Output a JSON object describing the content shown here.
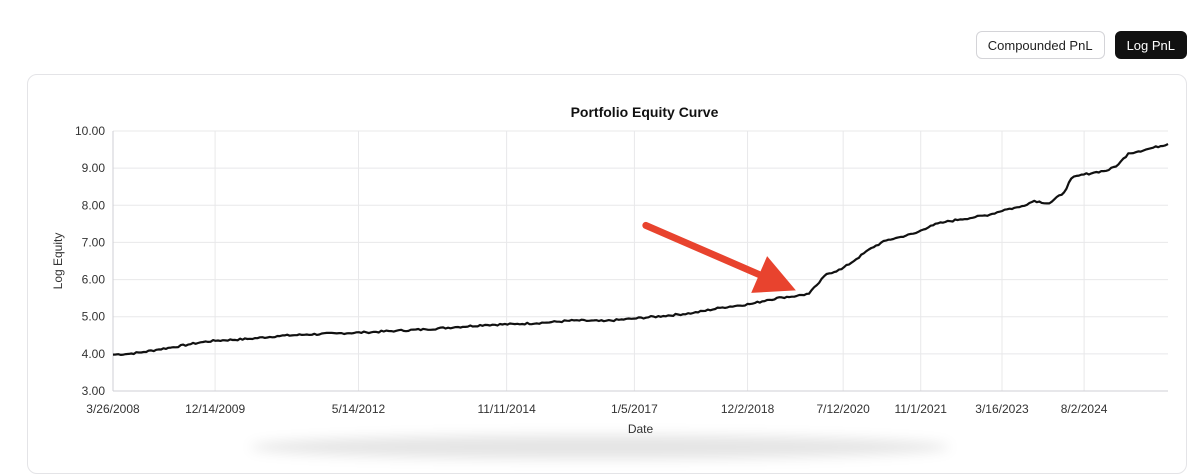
{
  "controls": {
    "compounded_label": "Compounded PnL",
    "log_label": "Log PnL",
    "active": "log"
  },
  "colors": {
    "line": "#111111",
    "grid": "#e8e8ea",
    "arrow": "#e8432e"
  },
  "chart_data": {
    "type": "line",
    "title": "Portfolio Equity Curve",
    "xlabel": "Date",
    "ylabel": "Log Equity",
    "ylim": [
      3.0,
      10.0
    ],
    "xlim": [
      "2008-03-26",
      "2025-12-31"
    ],
    "y_ticks": [
      "3.00",
      "4.00",
      "5.00",
      "6.00",
      "7.00",
      "8.00",
      "9.00",
      "10.00"
    ],
    "x_ticks": [
      {
        "label": "3/26/2008",
        "date": "2008-03-26"
      },
      {
        "label": "12/14/2009",
        "date": "2009-12-14"
      },
      {
        "label": "5/14/2012",
        "date": "2012-05-14"
      },
      {
        "label": "11/11/2014",
        "date": "2014-11-11"
      },
      {
        "label": "1/5/2017",
        "date": "2017-01-05"
      },
      {
        "label": "12/2/2018",
        "date": "2018-12-02"
      },
      {
        "label": "7/12/2020",
        "date": "2020-07-12"
      },
      {
        "label": "11/1/2021",
        "date": "2021-11-01"
      },
      {
        "label": "3/16/2023",
        "date": "2023-03-16"
      },
      {
        "label": "8/2/2024",
        "date": "2024-08-02"
      }
    ],
    "grid": true,
    "legend": "none",
    "series": [
      {
        "points": [
          [
            "2008-03-26",
            3.98
          ],
          [
            "2008-07-01",
            4.0
          ],
          [
            "2008-10-01",
            4.05
          ],
          [
            "2009-01-01",
            4.12
          ],
          [
            "2009-04-01",
            4.18
          ],
          [
            "2009-07-01",
            4.25
          ],
          [
            "2009-10-01",
            4.32
          ],
          [
            "2010-01-01",
            4.36
          ],
          [
            "2010-07-01",
            4.4
          ],
          [
            "2011-01-01",
            4.48
          ],
          [
            "2011-07-01",
            4.52
          ],
          [
            "2012-01-01",
            4.55
          ],
          [
            "2012-07-01",
            4.58
          ],
          [
            "2013-01-01",
            4.62
          ],
          [
            "2013-07-01",
            4.66
          ],
          [
            "2014-01-01",
            4.72
          ],
          [
            "2014-07-01",
            4.78
          ],
          [
            "2015-01-01",
            4.8
          ],
          [
            "2015-07-01",
            4.84
          ],
          [
            "2016-01-01",
            4.9
          ],
          [
            "2016-07-01",
            4.88
          ],
          [
            "2017-01-01",
            4.95
          ],
          [
            "2017-07-01",
            5.02
          ],
          [
            "2018-01-01",
            5.1
          ],
          [
            "2018-07-01",
            5.25
          ],
          [
            "2019-01-01",
            5.35
          ],
          [
            "2019-04-01",
            5.45
          ],
          [
            "2019-07-01",
            5.52
          ],
          [
            "2019-10-01",
            5.56
          ],
          [
            "2019-12-15",
            5.62
          ],
          [
            "2020-02-01",
            5.85
          ],
          [
            "2020-04-01",
            6.15
          ],
          [
            "2020-07-01",
            6.28
          ],
          [
            "2020-10-01",
            6.55
          ],
          [
            "2021-01-01",
            6.85
          ],
          [
            "2021-04-01",
            7.05
          ],
          [
            "2021-07-01",
            7.15
          ],
          [
            "2021-10-01",
            7.25
          ],
          [
            "2022-01-01",
            7.45
          ],
          [
            "2022-04-01",
            7.55
          ],
          [
            "2022-07-01",
            7.62
          ],
          [
            "2022-10-01",
            7.68
          ],
          [
            "2023-01-01",
            7.75
          ],
          [
            "2023-04-01",
            7.88
          ],
          [
            "2023-07-01",
            7.95
          ],
          [
            "2023-10-01",
            8.12
          ],
          [
            "2024-01-01",
            8.05
          ],
          [
            "2024-04-01",
            8.35
          ],
          [
            "2024-05-15",
            8.72
          ],
          [
            "2024-07-01",
            8.8
          ],
          [
            "2024-10-01",
            8.88
          ],
          [
            "2025-01-01",
            8.95
          ],
          [
            "2025-03-01",
            9.1
          ],
          [
            "2025-05-01",
            9.4
          ],
          [
            "2025-07-01",
            9.45
          ],
          [
            "2025-10-01",
            9.55
          ],
          [
            "2025-12-31",
            9.65
          ]
        ]
      }
    ],
    "annotation": {
      "type": "arrow",
      "target": [
        "2019-11-01",
        5.6
      ]
    }
  }
}
